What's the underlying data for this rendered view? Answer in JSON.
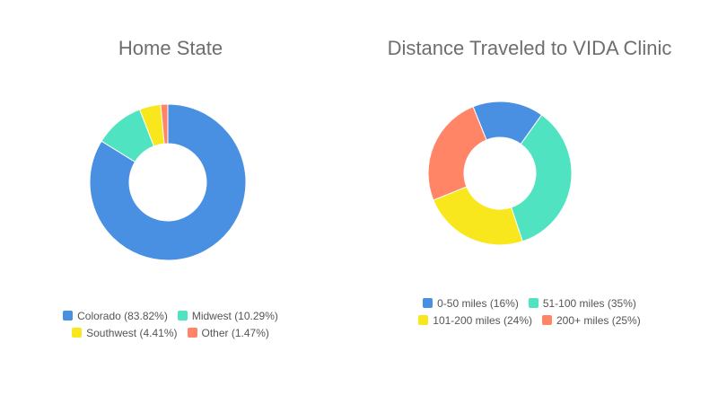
{
  "chart_data": [
    {
      "type": "pie",
      "subtype": "donut",
      "title": "Home State",
      "start_angle_deg": 0,
      "legend_position": "bottom",
      "slices": [
        {
          "label": "Colorado (83.82%)",
          "value": 83.82,
          "color": "#4a90e2"
        },
        {
          "label": "Midwest (10.29%)",
          "value": 10.29,
          "color": "#50e3c2"
        },
        {
          "label": "Southwest (4.41%)",
          "value": 4.41,
          "color": "#f8e71c"
        },
        {
          "label": "Other (1.47%)",
          "value": 1.47,
          "color": "#ff8566"
        }
      ]
    },
    {
      "type": "pie",
      "subtype": "donut",
      "title": "Distance Traveled to VIDA Clinic",
      "start_angle_deg": -22,
      "legend_position": "bottom",
      "slices": [
        {
          "label": "0-50 miles (16%)",
          "value": 16,
          "color": "#4a90e2"
        },
        {
          "label": "51-100 miles (35%)",
          "value": 35,
          "color": "#50e3c2"
        },
        {
          "label": "101-200 miles (24%)",
          "value": 24,
          "color": "#f8e71c"
        },
        {
          "label": "200+ miles (25%)",
          "value": 25,
          "color": "#ff8566"
        }
      ]
    }
  ]
}
